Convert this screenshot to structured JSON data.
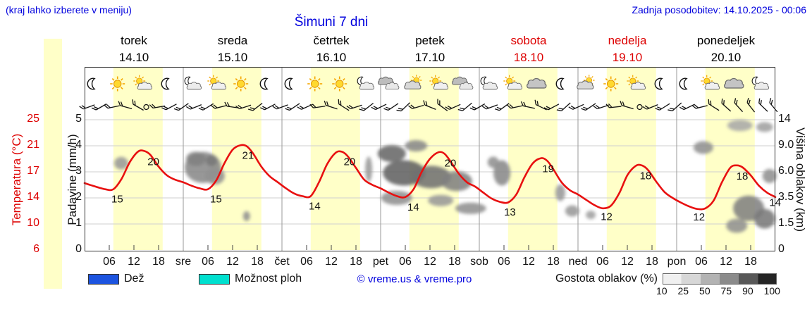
{
  "header": {
    "hint": "(kraj lahko izberete v meniju)",
    "updated": "Zadnja posodobitev: 14.10.2025 - 00:06",
    "title": "Šimuni 7 dni",
    "accent_blue": "#0000dd",
    "accent_red": "#dd0000"
  },
  "days": [
    {
      "name": "torek",
      "date": "14.10",
      "color": "#000000"
    },
    {
      "name": "sreda",
      "date": "15.10",
      "color": "#000000"
    },
    {
      "name": "četrtek",
      "date": "16.10",
      "color": "#000000"
    },
    {
      "name": "petek",
      "date": "17.10",
      "color": "#000000"
    },
    {
      "name": "sobota",
      "date": "18.10",
      "color": "#dd0000"
    },
    {
      "name": "nedelja",
      "date": "19.10",
      "color": "#dd0000"
    },
    {
      "name": "ponedeljek",
      "date": "20.10",
      "color": "#000000"
    }
  ],
  "axes": {
    "temperature": {
      "label": "Temperatura (°C)",
      "ticks": [
        "25",
        "21",
        "17",
        "14",
        "10",
        "6"
      ],
      "color": "#dd0000"
    },
    "precip": {
      "label": "Padavine (mm/h)",
      "ticks": [
        "5",
        "4",
        "3",
        "2",
        "1",
        "0"
      ]
    },
    "cloudheight": {
      "label": "Višina oblakov (km)",
      "ticks": [
        "14",
        "9.0",
        "6.0",
        "3.5",
        "1.5",
        "0"
      ]
    }
  },
  "xaxis": {
    "hour_labels": [
      "06",
      "12",
      "18"
    ],
    "day_abbrs": [
      "sre",
      "čet",
      "pet",
      "sob",
      "ned",
      "pon"
    ]
  },
  "legend": {
    "rain_label": "Dež",
    "rain_color": "#1c54e0",
    "showers_label": "Možnost ploh",
    "showers_color": "#00e0cf",
    "copyright": "© vreme.us & vreme.pro",
    "cloud_density_label": "Gostota oblakov (%)",
    "cloud_density_ticks": [
      "10",
      "25",
      "50",
      "75",
      "90",
      "100"
    ]
  },
  "chart_data": {
    "type": "line",
    "subtype": "meteogram",
    "title": "Šimuni 7 dni",
    "x_unit": "hours from torek 14.10 00:00",
    "x_range": [
      0,
      168
    ],
    "day_band_hours": [
      7,
      19
    ],
    "temp_axis_gridline_c": [
      25,
      21,
      17,
      14,
      10,
      6
    ],
    "precip_axis_mm_h": [
      5,
      4,
      3,
      2,
      1,
      0
    ],
    "cloud_height_axis_km": [
      14,
      9.0,
      6.0,
      3.5,
      1.5,
      0
    ],
    "daily_summary": [
      {
        "day": "torek",
        "min": 15,
        "max": 20
      },
      {
        "day": "sreda",
        "min": 15,
        "max": 21
      },
      {
        "day": "četrtek",
        "min": 14,
        "max": 20
      },
      {
        "day": "petek",
        "min": 14,
        "max": 20
      },
      {
        "day": "sobota",
        "min": 13,
        "max": 19
      },
      {
        "day": "nedelja",
        "min": 12,
        "max": 18
      },
      {
        "day": "ponedeljek",
        "min": 12,
        "max": 18
      }
    ],
    "temperature_c": [
      [
        0,
        15.7
      ],
      [
        2,
        15.4
      ],
      [
        5,
        15.0
      ],
      [
        7,
        15.0
      ],
      [
        9,
        16.2
      ],
      [
        11,
        18.5
      ],
      [
        13,
        20.1
      ],
      [
        14.5,
        20.2
      ],
      [
        16,
        19.6
      ],
      [
        18,
        17.8
      ],
      [
        20,
        16.6
      ],
      [
        22,
        16.1
      ],
      [
        24,
        15.8
      ],
      [
        26,
        15.4
      ],
      [
        28,
        15.1
      ],
      [
        30,
        15.0
      ],
      [
        32,
        16.0
      ],
      [
        34,
        18.3
      ],
      [
        36,
        20.4
      ],
      [
        38,
        21.1
      ],
      [
        39.5,
        20.9
      ],
      [
        41,
        19.8
      ],
      [
        43,
        17.8
      ],
      [
        45,
        16.5
      ],
      [
        47,
        15.8
      ],
      [
        49,
        15.1
      ],
      [
        51,
        14.5
      ],
      [
        53,
        14.2
      ],
      [
        55,
        14.2
      ],
      [
        57,
        15.8
      ],
      [
        59,
        18.2
      ],
      [
        61,
        19.9
      ],
      [
        62.5,
        20.1
      ],
      [
        64,
        19.4
      ],
      [
        66,
        17.6
      ],
      [
        68,
        16.1
      ],
      [
        70,
        15.5
      ],
      [
        72,
        15.1
      ],
      [
        74,
        14.6
      ],
      [
        76,
        14.2
      ],
      [
        78,
        14.1
      ],
      [
        80,
        15.0
      ],
      [
        82,
        17.0
      ],
      [
        84,
        19.0
      ],
      [
        86,
        20.0
      ],
      [
        87.5,
        19.8
      ],
      [
        89,
        18.6
      ],
      [
        91,
        16.8
      ],
      [
        93,
        15.8
      ],
      [
        95,
        15.3
      ],
      [
        97,
        14.6
      ],
      [
        99,
        13.9
      ],
      [
        101,
        13.4
      ],
      [
        103,
        13.3
      ],
      [
        105,
        14.4
      ],
      [
        107,
        16.4
      ],
      [
        109,
        18.3
      ],
      [
        111,
        19.1
      ],
      [
        112.5,
        18.7
      ],
      [
        114,
        17.4
      ],
      [
        116,
        15.8
      ],
      [
        118,
        14.9
      ],
      [
        120,
        14.4
      ],
      [
        122,
        13.7
      ],
      [
        124,
        12.9
      ],
      [
        126,
        12.4
      ],
      [
        128,
        12.8
      ],
      [
        130,
        14.5
      ],
      [
        132,
        16.6
      ],
      [
        134,
        17.9
      ],
      [
        135.5,
        18.0
      ],
      [
        137,
        17.3
      ],
      [
        139,
        15.9
      ],
      [
        141,
        14.7
      ],
      [
        143,
        14.0
      ],
      [
        145,
        13.3
      ],
      [
        147,
        12.7
      ],
      [
        149,
        12.3
      ],
      [
        151,
        12.4
      ],
      [
        153,
        13.6
      ],
      [
        155,
        15.8
      ],
      [
        157,
        17.6
      ],
      [
        158.5,
        18.0
      ],
      [
        160,
        17.7
      ],
      [
        162,
        16.6
      ],
      [
        164,
        15.4
      ],
      [
        166,
        14.6
      ],
      [
        168,
        14.1
      ]
    ],
    "temp_point_labels": [
      {
        "h": 6,
        "v": "15"
      },
      {
        "h": 14.8,
        "v": "20"
      },
      {
        "h": 30,
        "v": "15"
      },
      {
        "h": 37.8,
        "v": "21"
      },
      {
        "h": 54,
        "v": "14"
      },
      {
        "h": 62.5,
        "v": "20"
      },
      {
        "h": 78,
        "v": "14"
      },
      {
        "h": 87,
        "v": "20"
      },
      {
        "h": 101.5,
        "v": "13"
      },
      {
        "h": 110.8,
        "v": "19"
      },
      {
        "h": 125,
        "v": "12"
      },
      {
        "h": 134.5,
        "v": "18"
      },
      {
        "h": 147.5,
        "v": "12"
      },
      {
        "h": 158,
        "v": "18"
      },
      {
        "h": 166,
        "v": "14"
      }
    ],
    "weather_icons": [
      {
        "h": 2,
        "type": "moon"
      },
      {
        "h": 8,
        "type": "sun"
      },
      {
        "h": 14,
        "type": "sun-cloud"
      },
      {
        "h": 20,
        "type": "moon"
      },
      {
        "h": 26,
        "type": "cloud-moon"
      },
      {
        "h": 32,
        "type": "sun-cloud"
      },
      {
        "h": 38,
        "type": "sun"
      },
      {
        "h": 44,
        "type": "moon"
      },
      {
        "h": 50,
        "type": "moon"
      },
      {
        "h": 56,
        "type": "sun"
      },
      {
        "h": 62,
        "type": "sun"
      },
      {
        "h": 68,
        "type": "cloud-moon"
      },
      {
        "h": 74,
        "type": "clouds"
      },
      {
        "h": 80,
        "type": "cloud-sun"
      },
      {
        "h": 86,
        "type": "sun-cloud"
      },
      {
        "h": 92,
        "type": "clouds"
      },
      {
        "h": 98,
        "type": "cloud-moon"
      },
      {
        "h": 104,
        "type": "sun-cloud"
      },
      {
        "h": 110,
        "type": "cloud"
      },
      {
        "h": 116,
        "type": "moon"
      },
      {
        "h": 122,
        "type": "cloud-sun"
      },
      {
        "h": 128,
        "type": "sun"
      },
      {
        "h": 134,
        "type": "sun-cloud"
      },
      {
        "h": 140,
        "type": "moon"
      },
      {
        "h": 146,
        "type": "moon"
      },
      {
        "h": 152,
        "type": "sun-cloud"
      },
      {
        "h": 158,
        "type": "cloud"
      },
      {
        "h": 164,
        "type": "cloud-moon"
      }
    ],
    "wind_barbs": [
      [
        1,
        -20
      ],
      [
        4,
        -30
      ],
      [
        7,
        -12
      ],
      [
        10,
        15
      ],
      [
        13,
        30
      ],
      [
        15,
        null
      ],
      [
        18,
        -10
      ],
      [
        21,
        -28
      ],
      [
        24,
        -35
      ],
      [
        27,
        -22
      ],
      [
        30,
        -32
      ],
      [
        33,
        -14
      ],
      [
        36,
        8
      ],
      [
        39,
        -18
      ],
      [
        42,
        -38
      ],
      [
        45,
        -28
      ],
      [
        48,
        -20
      ],
      [
        51,
        -34
      ],
      [
        54,
        -24
      ],
      [
        57,
        -8
      ],
      [
        60,
        18
      ],
      [
        63,
        32
      ],
      [
        66,
        -18
      ],
      [
        69,
        -38
      ],
      [
        72,
        -26
      ],
      [
        75,
        -34
      ],
      [
        78,
        -44
      ],
      [
        81,
        -16
      ],
      [
        84,
        22
      ],
      [
        87,
        36
      ],
      [
        90,
        -24
      ],
      [
        93,
        -40
      ],
      [
        96,
        -30
      ],
      [
        99,
        -20
      ],
      [
        102,
        -36
      ],
      [
        105,
        -12
      ],
      [
        108,
        12
      ],
      [
        111,
        26
      ],
      [
        114,
        -28
      ],
      [
        117,
        -42
      ],
      [
        120,
        -24
      ],
      [
        123,
        -34
      ],
      [
        126,
        -18
      ],
      [
        129,
        -6
      ],
      [
        132,
        16
      ],
      [
        135,
        null
      ],
      [
        138,
        -22
      ],
      [
        141,
        -32
      ],
      [
        144,
        -42
      ],
      [
        147,
        -26
      ],
      [
        150,
        -14
      ],
      [
        153,
        32
      ],
      [
        156,
        42
      ],
      [
        159,
        48
      ],
      [
        162,
        52
      ],
      [
        165,
        44
      ],
      [
        167.5,
        50
      ]
    ],
    "cloud_blobs": [
      [
        8.9,
        7.0,
        10,
        9,
        45
      ],
      [
        28.8,
        6.5,
        26,
        22,
        55
      ],
      [
        27.1,
        7.5,
        14,
        10,
        60
      ],
      [
        31.7,
        5.6,
        14,
        12,
        50
      ],
      [
        30.9,
        7.3,
        8,
        8,
        65
      ],
      [
        39.4,
        2.1,
        5,
        7,
        50
      ],
      [
        69.1,
        6.3,
        5,
        18,
        45
      ],
      [
        74.7,
        8.1,
        20,
        12,
        75
      ],
      [
        77.7,
        5.9,
        30,
        18,
        80
      ],
      [
        84.3,
        5.5,
        28,
        16,
        70
      ],
      [
        90.5,
        5.1,
        22,
        14,
        60
      ],
      [
        80.6,
        9.0,
        16,
        8,
        55
      ],
      [
        75.9,
        3.5,
        22,
        10,
        50
      ],
      [
        86.6,
        3.3,
        18,
        8,
        45
      ],
      [
        93.9,
        2.7,
        22,
        8,
        50
      ],
      [
        101.5,
        5.9,
        12,
        18,
        55
      ],
      [
        99.4,
        7.1,
        8,
        8,
        50
      ],
      [
        115.7,
        4.0,
        7,
        12,
        45
      ],
      [
        118.6,
        2.5,
        10,
        8,
        45
      ],
      [
        123.1,
        2.2,
        7,
        6,
        40
      ],
      [
        150.5,
        8.8,
        14,
        9,
        50
      ],
      [
        159.4,
        12.9,
        18,
        8,
        35
      ],
      [
        165.4,
        12.6,
        12,
        7,
        40
      ],
      [
        161.5,
        2.7,
        22,
        18,
        60
      ],
      [
        165.4,
        1.9,
        15,
        14,
        65
      ],
      [
        166.6,
        5.6,
        10,
        10,
        50
      ],
      [
        158.6,
        1.4,
        15,
        10,
        50
      ]
    ]
  }
}
